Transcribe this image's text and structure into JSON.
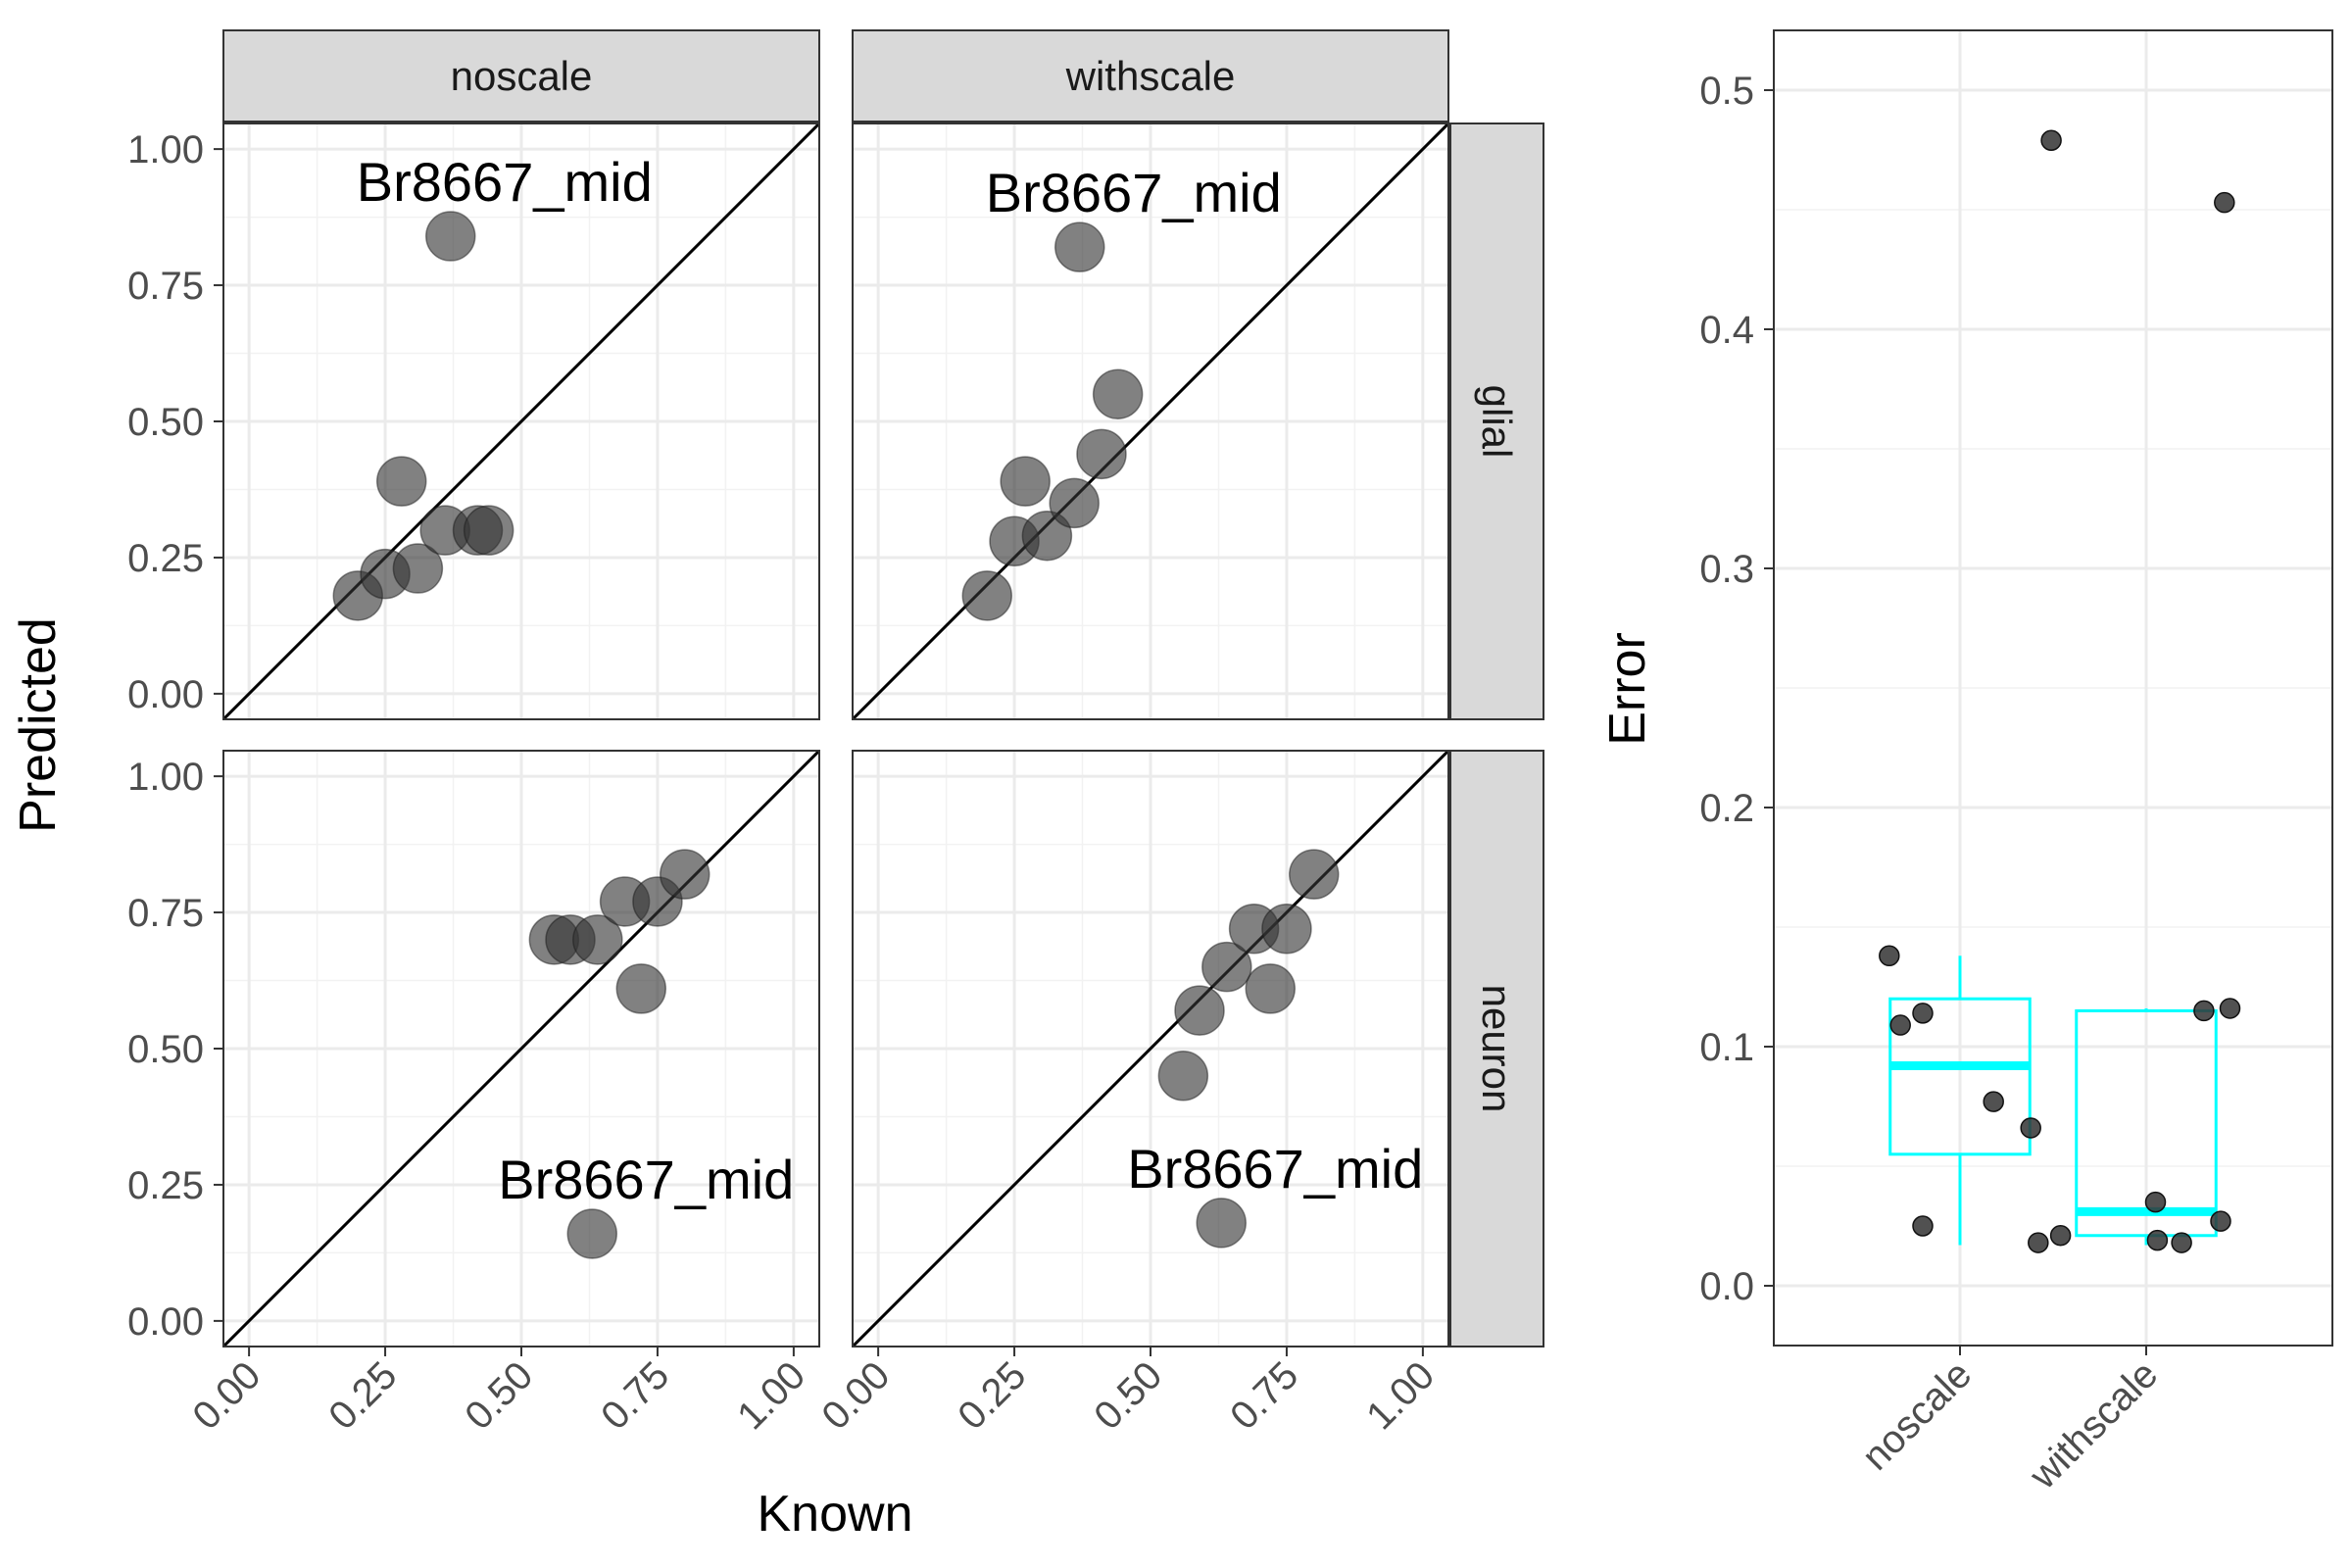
{
  "chart_data": [
    {
      "type": "scatter",
      "facet_columns": [
        "noscale",
        "withscale"
      ],
      "facet_rows": [
        "glial",
        "neuron"
      ],
      "xlabel": "Known",
      "ylabel": "Predicted",
      "xlim": [
        0,
        1
      ],
      "ylim": [
        0,
        1
      ],
      "x_ticks": [
        "0.00",
        "0.25",
        "0.50",
        "0.75",
        "1.00"
      ],
      "y_ticks": [
        "0.00",
        "0.25",
        "0.50",
        "0.75",
        "1.00"
      ],
      "reference_line": "y = x",
      "grid": true,
      "point_color": "#333333",
      "panels": [
        {
          "col": "noscale",
          "row": "glial",
          "annotation": {
            "text": "Br8667_mid",
            "x": 0.37,
            "y": 0.84
          },
          "points": [
            {
              "x": 0.2,
              "y": 0.18
            },
            {
              "x": 0.25,
              "y": 0.22
            },
            {
              "x": 0.31,
              "y": 0.23
            },
            {
              "x": 0.28,
              "y": 0.39
            },
            {
              "x": 0.36,
              "y": 0.3
            },
            {
              "x": 0.42,
              "y": 0.3
            },
            {
              "x": 0.44,
              "y": 0.3
            },
            {
              "x": 0.37,
              "y": 0.84
            }
          ]
        },
        {
          "col": "withscale",
          "row": "glial",
          "annotation": {
            "text": "Br8667_mid",
            "x": 0.37,
            "y": 0.82
          },
          "points": [
            {
              "x": 0.2,
              "y": 0.18
            },
            {
              "x": 0.25,
              "y": 0.28
            },
            {
              "x": 0.31,
              "y": 0.29
            },
            {
              "x": 0.27,
              "y": 0.39
            },
            {
              "x": 0.36,
              "y": 0.35
            },
            {
              "x": 0.41,
              "y": 0.44
            },
            {
              "x": 0.44,
              "y": 0.55
            },
            {
              "x": 0.37,
              "y": 0.82
            }
          ]
        },
        {
          "col": "noscale",
          "row": "neuron",
          "annotation": {
            "text": "Br8667_mid",
            "x": 0.63,
            "y": 0.16
          },
          "points": [
            {
              "x": 0.56,
              "y": 0.7
            },
            {
              "x": 0.59,
              "y": 0.7
            },
            {
              "x": 0.64,
              "y": 0.7
            },
            {
              "x": 0.69,
              "y": 0.77
            },
            {
              "x": 0.75,
              "y": 0.77
            },
            {
              "x": 0.8,
              "y": 0.82
            },
            {
              "x": 0.72,
              "y": 0.61
            },
            {
              "x": 0.63,
              "y": 0.16
            }
          ]
        },
        {
          "col": "withscale",
          "row": "neuron",
          "annotation": {
            "text": "Br8667_mid",
            "x": 0.63,
            "y": 0.18
          },
          "points": [
            {
              "x": 0.56,
              "y": 0.45
            },
            {
              "x": 0.59,
              "y": 0.57
            },
            {
              "x": 0.64,
              "y": 0.65
            },
            {
              "x": 0.69,
              "y": 0.72
            },
            {
              "x": 0.75,
              "y": 0.72
            },
            {
              "x": 0.8,
              "y": 0.82
            },
            {
              "x": 0.72,
              "y": 0.61
            },
            {
              "x": 0.63,
              "y": 0.18
            }
          ]
        }
      ]
    },
    {
      "type": "box",
      "categories": [
        "noscale",
        "withscale"
      ],
      "xlabel": "",
      "ylabel": "Error",
      "ylim": [
        -0.025,
        0.525
      ],
      "y_ticks": [
        "0.0",
        "0.1",
        "0.2",
        "0.3",
        "0.4",
        "0.5"
      ],
      "grid": true,
      "box_color": "#00FFFF",
      "point_color": "#333333",
      "boxes": [
        {
          "category": "noscale",
          "min": 0.017,
          "q1": 0.055,
          "median": 0.092,
          "q3": 0.12,
          "max": 0.138,
          "outliers": [
            0.479
          ]
        },
        {
          "category": "withscale",
          "min": 0.017,
          "q1": 0.021,
          "median": 0.031,
          "q3": 0.115,
          "max": 0.116,
          "outliers": [
            0.453
          ]
        }
      ],
      "points": [
        {
          "category": "noscale",
          "jitter": -0.38,
          "y": 0.138
        },
        {
          "category": "noscale",
          "jitter": -0.32,
          "y": 0.109
        },
        {
          "category": "noscale",
          "jitter": -0.2,
          "y": 0.114
        },
        {
          "category": "noscale",
          "jitter": 0.18,
          "y": 0.077
        },
        {
          "category": "noscale",
          "jitter": 0.38,
          "y": 0.066
        },
        {
          "category": "noscale",
          "jitter": -0.2,
          "y": 0.025
        },
        {
          "category": "noscale",
          "jitter": 0.42,
          "y": 0.018
        },
        {
          "category": "noscale",
          "jitter": 0.49,
          "y": 0.479
        },
        {
          "category": "withscale",
          "jitter": -0.46,
          "y": 0.021
        },
        {
          "category": "withscale",
          "jitter": 0.05,
          "y": 0.035
        },
        {
          "category": "withscale",
          "jitter": 0.06,
          "y": 0.019
        },
        {
          "category": "withscale",
          "jitter": 0.19,
          "y": 0.018
        },
        {
          "category": "withscale",
          "jitter": 0.4,
          "y": 0.027
        },
        {
          "category": "withscale",
          "jitter": 0.31,
          "y": 0.115
        },
        {
          "category": "withscale",
          "jitter": 0.45,
          "y": 0.116
        },
        {
          "category": "withscale",
          "jitter": 0.42,
          "y": 0.453
        }
      ]
    }
  ]
}
